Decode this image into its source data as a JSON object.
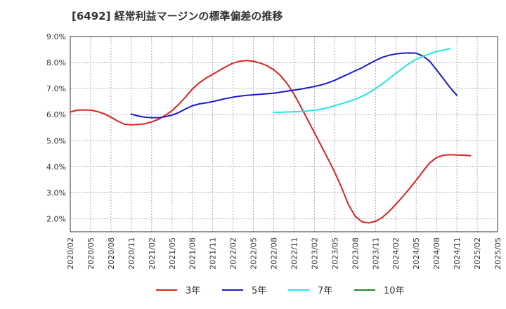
{
  "chart_data": {
    "type": "line",
    "title": "[6492]  経常利益マージンの標準偏差の推移",
    "xlabel": "",
    "ylabel": "",
    "ylim": [
      1.5,
      9.0
    ],
    "yticks": [
      2.0,
      3.0,
      4.0,
      5.0,
      6.0,
      7.0,
      8.0,
      9.0
    ],
    "ytick_labels": [
      "2.0%",
      "3.0%",
      "4.0%",
      "5.0%",
      "6.0%",
      "7.0%",
      "8.0%",
      "9.0%"
    ],
    "x_categories": [
      "2020/02",
      "2020/05",
      "2020/08",
      "2020/11",
      "2021/02",
      "2021/05",
      "2021/08",
      "2021/11",
      "2022/02",
      "2022/05",
      "2022/08",
      "2022/11",
      "2023/02",
      "2023/05",
      "2023/08",
      "2023/11",
      "2024/02",
      "2024/05",
      "2024/08",
      "2024/11",
      "2025/02",
      "2025/05"
    ],
    "grid": true,
    "legend_position": "bottom",
    "series": [
      {
        "name": "3年",
        "color": "#e02020",
        "points": [
          [
            "2020/02",
            6.1
          ],
          [
            "2020/03",
            6.17
          ],
          [
            "2020/04",
            6.18
          ],
          [
            "2020/05",
            6.17
          ],
          [
            "2020/06",
            6.12
          ],
          [
            "2020/07",
            6.03
          ],
          [
            "2020/08",
            5.9
          ],
          [
            "2020/09",
            5.75
          ],
          [
            "2020/10",
            5.63
          ],
          [
            "2020/11",
            5.61
          ],
          [
            "2020/12",
            5.62
          ],
          [
            "2021/01",
            5.65
          ],
          [
            "2021/02",
            5.72
          ],
          [
            "2021/03",
            5.82
          ],
          [
            "2021/04",
            5.97
          ],
          [
            "2021/05",
            6.15
          ],
          [
            "2021/06",
            6.4
          ],
          [
            "2021/07",
            6.68
          ],
          [
            "2021/08",
            6.98
          ],
          [
            "2021/09",
            7.22
          ],
          [
            "2021/10",
            7.4
          ],
          [
            "2021/11",
            7.55
          ],
          [
            "2021/12",
            7.7
          ],
          [
            "2022/01",
            7.85
          ],
          [
            "2022/02",
            7.98
          ],
          [
            "2022/03",
            8.05
          ],
          [
            "2022/04",
            8.08
          ],
          [
            "2022/05",
            8.05
          ],
          [
            "2022/06",
            7.98
          ],
          [
            "2022/07",
            7.88
          ],
          [
            "2022/08",
            7.72
          ],
          [
            "2022/09",
            7.5
          ],
          [
            "2022/10",
            7.18
          ],
          [
            "2022/11",
            6.78
          ],
          [
            "2022/12",
            6.3
          ],
          [
            "2023/01",
            5.8
          ],
          [
            "2023/02",
            5.3
          ],
          [
            "2023/03",
            4.8
          ],
          [
            "2023/04",
            4.3
          ],
          [
            "2023/05",
            3.78
          ],
          [
            "2023/06",
            3.2
          ],
          [
            "2023/07",
            2.55
          ],
          [
            "2023/08",
            2.1
          ],
          [
            "2023/09",
            1.88
          ],
          [
            "2023/10",
            1.84
          ],
          [
            "2023/11",
            1.9
          ],
          [
            "2023/12",
            2.05
          ],
          [
            "2024/01",
            2.28
          ],
          [
            "2024/02",
            2.55
          ],
          [
            "2024/03",
            2.85
          ],
          [
            "2024/04",
            3.15
          ],
          [
            "2024/05",
            3.48
          ],
          [
            "2024/06",
            3.82
          ],
          [
            "2024/07",
            4.15
          ],
          [
            "2024/08",
            4.35
          ],
          [
            "2024/09",
            4.44
          ],
          [
            "2024/10",
            4.46
          ],
          [
            "2024/11",
            4.45
          ],
          [
            "2024/12",
            4.44
          ],
          [
            "2025/01",
            4.42
          ]
        ]
      },
      {
        "name": "5年",
        "color": "#1a1acc",
        "points": [
          [
            "2020/11",
            6.02
          ],
          [
            "2020/12",
            5.95
          ],
          [
            "2021/01",
            5.9
          ],
          [
            "2021/02",
            5.88
          ],
          [
            "2021/03",
            5.88
          ],
          [
            "2021/04",
            5.92
          ],
          [
            "2021/05",
            5.98
          ],
          [
            "2021/06",
            6.08
          ],
          [
            "2021/07",
            6.22
          ],
          [
            "2021/08",
            6.34
          ],
          [
            "2021/09",
            6.41
          ],
          [
            "2021/10",
            6.45
          ],
          [
            "2021/11",
            6.5
          ],
          [
            "2021/12",
            6.56
          ],
          [
            "2022/01",
            6.62
          ],
          [
            "2022/02",
            6.67
          ],
          [
            "2022/03",
            6.71
          ],
          [
            "2022/04",
            6.74
          ],
          [
            "2022/05",
            6.76
          ],
          [
            "2022/06",
            6.78
          ],
          [
            "2022/07",
            6.8
          ],
          [
            "2022/08",
            6.82
          ],
          [
            "2022/09",
            6.86
          ],
          [
            "2022/10",
            6.9
          ],
          [
            "2022/11",
            6.94
          ],
          [
            "2022/12",
            6.98
          ],
          [
            "2023/01",
            7.03
          ],
          [
            "2023/02",
            7.08
          ],
          [
            "2023/03",
            7.14
          ],
          [
            "2023/04",
            7.22
          ],
          [
            "2023/05",
            7.32
          ],
          [
            "2023/06",
            7.44
          ],
          [
            "2023/07",
            7.56
          ],
          [
            "2023/08",
            7.68
          ],
          [
            "2023/09",
            7.8
          ],
          [
            "2023/10",
            7.94
          ],
          [
            "2023/11",
            8.08
          ],
          [
            "2023/12",
            8.2
          ],
          [
            "2024/01",
            8.28
          ],
          [
            "2024/02",
            8.33
          ],
          [
            "2024/03",
            8.36
          ],
          [
            "2024/04",
            8.37
          ],
          [
            "2024/05",
            8.36
          ],
          [
            "2024/06",
            8.25
          ],
          [
            "2024/07",
            8.05
          ],
          [
            "2024/08",
            7.72
          ],
          [
            "2024/09",
            7.38
          ],
          [
            "2024/10",
            7.04
          ],
          [
            "2024/11",
            6.74
          ]
        ]
      },
      {
        "name": "7年",
        "color": "#22e5e5",
        "points": [
          [
            "2022/08",
            6.09
          ],
          [
            "2022/09",
            6.09
          ],
          [
            "2022/10",
            6.1
          ],
          [
            "2022/11",
            6.11
          ],
          [
            "2022/12",
            6.12
          ],
          [
            "2023/01",
            6.14
          ],
          [
            "2023/02",
            6.17
          ],
          [
            "2023/03",
            6.21
          ],
          [
            "2023/04",
            6.27
          ],
          [
            "2023/05",
            6.34
          ],
          [
            "2023/06",
            6.42
          ],
          [
            "2023/07",
            6.5
          ],
          [
            "2023/08",
            6.59
          ],
          [
            "2023/09",
            6.7
          ],
          [
            "2023/10",
            6.84
          ],
          [
            "2023/11",
            7.0
          ],
          [
            "2023/12",
            7.18
          ],
          [
            "2024/01",
            7.38
          ],
          [
            "2024/02",
            7.58
          ],
          [
            "2024/03",
            7.78
          ],
          [
            "2024/04",
            7.97
          ],
          [
            "2024/05",
            8.12
          ],
          [
            "2024/06",
            8.24
          ],
          [
            "2024/07",
            8.34
          ],
          [
            "2024/08",
            8.42
          ],
          [
            "2024/09",
            8.48
          ],
          [
            "2024/10",
            8.53
          ]
        ]
      },
      {
        "name": "10年",
        "color": "#228822",
        "points": []
      }
    ]
  }
}
